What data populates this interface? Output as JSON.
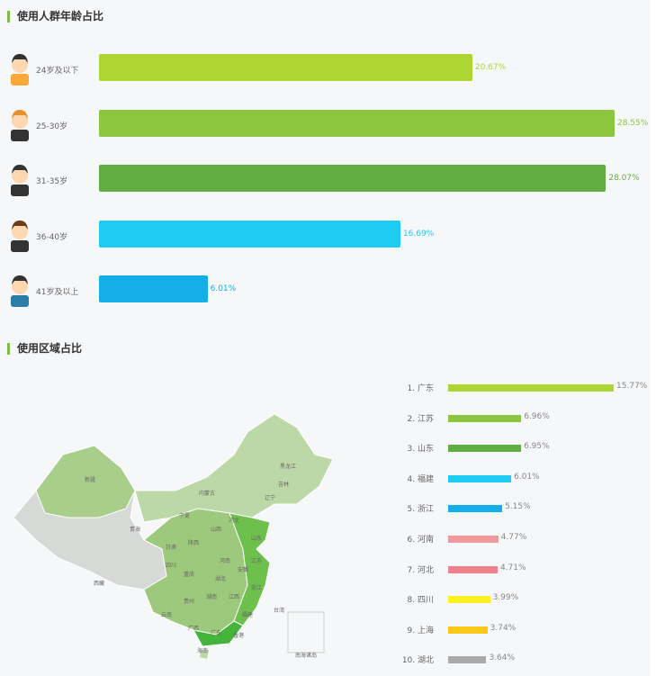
{
  "age_section": {
    "title": "使用人群年龄占比"
  },
  "region_section": {
    "title": "使用区域占比"
  },
  "chart_data": [
    {
      "type": "bar",
      "orientation": "horizontal",
      "title": "使用人群年龄占比",
      "categories": [
        "24岁及以下",
        "25-30岁",
        "31-35岁",
        "36-40岁",
        "41岁及以上"
      ],
      "values": [
        20.67,
        28.55,
        28.07,
        16.69,
        6.01
      ],
      "labels": [
        "20.67%",
        "28.55%",
        "28.07%",
        "16.69%",
        "6.01%"
      ],
      "colors": [
        "#add534",
        "#8cc63f",
        "#62ad41",
        "#1ecbf2",
        "#14aee8"
      ]
    },
    {
      "type": "bar",
      "orientation": "horizontal",
      "title": "使用区域占比",
      "categories": [
        "1. 广东",
        "2. 江苏",
        "3. 山东",
        "4. 福建",
        "5. 浙江",
        "6. 河南",
        "7. 河北",
        "8. 四川",
        "9. 上海",
        "10. 湖北"
      ],
      "values": [
        15.77,
        6.96,
        6.95,
        6.01,
        5.15,
        4.77,
        4.71,
        3.99,
        3.74,
        3.64
      ],
      "labels": [
        "15.77%",
        "6.96%",
        "6.95%",
        "6.01%",
        "5.15%",
        "4.77%",
        "4.71%",
        "3.99%",
        "3.74%",
        "3.64%"
      ],
      "colors": [
        "#add534",
        "#8cc63f",
        "#62ad41",
        "#1ecbf2",
        "#14aee8",
        "#f1999b",
        "#f0808a",
        "#fff01f",
        "#fbc81a",
        "#aaaaaa"
      ]
    }
  ],
  "map": {
    "provinces": [
      "新疆",
      "西藏",
      "青海",
      "甘肃",
      "内蒙古",
      "黑龙江",
      "吉林",
      "辽宁",
      "宁夏",
      "陕西",
      "山西",
      "河北",
      "山东",
      "河南",
      "江苏",
      "安徽",
      "湖北",
      "四川",
      "重庆",
      "湖南",
      "江西",
      "浙江",
      "贵州",
      "云南",
      "广西",
      "广东",
      "福建",
      "台湾",
      "海南",
      "香港",
      "南海诸岛"
    ]
  }
}
